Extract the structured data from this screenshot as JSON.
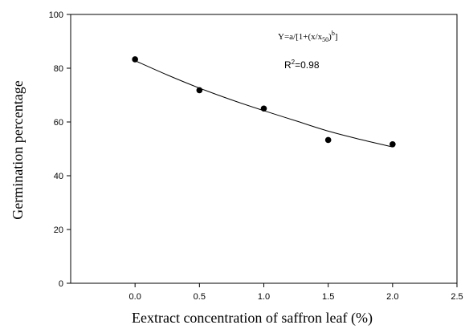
{
  "chart_data": {
    "type": "scatter",
    "title": "",
    "xlabel": "Eextract  concentration of saffron leaf (%)",
    "ylabel": "Germination percentage",
    "xlim": [
      -0.5,
      2.5
    ],
    "ylim": [
      0,
      100
    ],
    "x_ticks": [
      "0.0",
      "0.5",
      "1.0",
      "1.5",
      "2.0",
      "2.5"
    ],
    "x_tick_values": [
      0,
      0.5,
      1.0,
      1.5,
      2.0,
      2.5
    ],
    "y_ticks": [
      "0",
      "20",
      "40",
      "60",
      "80",
      "100"
    ],
    "y_tick_values": [
      0,
      20,
      40,
      60,
      80,
      100
    ],
    "grid": false,
    "series": [
      {
        "points": [
          {
            "x": 0.0,
            "y": 83.3
          },
          {
            "x": 0.5,
            "y": 71.8
          },
          {
            "x": 1.0,
            "y": 65.0
          },
          {
            "x": 1.5,
            "y": 53.3
          },
          {
            "x": 2.0,
            "y": 51.7
          }
        ]
      }
    ],
    "fit_curve": [
      {
        "x": 0.0,
        "y": 82.8
      },
      {
        "x": 0.25,
        "y": 77.5
      },
      {
        "x": 0.5,
        "y": 72.6
      },
      {
        "x": 0.75,
        "y": 68.2
      },
      {
        "x": 1.0,
        "y": 64.2
      },
      {
        "x": 1.25,
        "y": 60.4
      },
      {
        "x": 1.5,
        "y": 56.6
      },
      {
        "x": 1.75,
        "y": 53.5
      },
      {
        "x": 2.0,
        "y": 50.7
      }
    ],
    "annotations": {
      "equation_main": "Y=a/[1+(x/x",
      "equation_sub": "50",
      "equation_close": ")",
      "equation_sup": "b",
      "equation_end": "]",
      "r2_main": "R",
      "r2_sup": "2",
      "r2_value": "=0.98"
    }
  }
}
